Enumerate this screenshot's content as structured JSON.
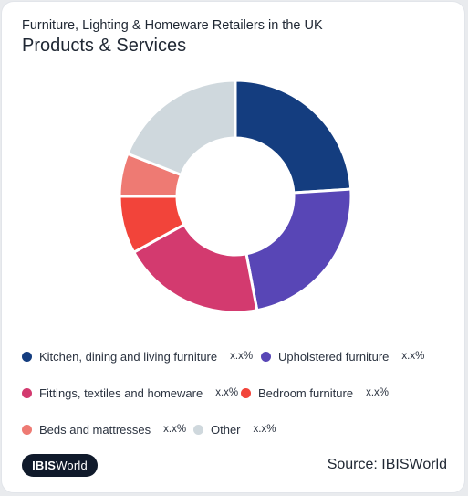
{
  "header": {
    "subtitle": "Furniture, Lighting & Homeware Retailers in the UK",
    "title": "Products & Services"
  },
  "chart_data": {
    "type": "pie",
    "variant": "donut",
    "categories": [
      "Kitchen, dining and living furniture",
      "Upholstered furniture",
      "Fittings, textiles and homeware",
      "Bedroom furniture",
      "Beds and mattresses",
      "Other"
    ],
    "values": [
      24,
      23,
      20,
      8,
      6,
      19
    ],
    "colors": [
      "#143d7f",
      "#5846b6",
      "#d33a6f",
      "#f2443a",
      "#ee7a73",
      "#cfd8dd"
    ],
    "value_labels": [
      "x.x%",
      "x.x%",
      "x.x%",
      "x.x%",
      "x.x%",
      "x.x%"
    ]
  },
  "footer": {
    "logo_bold": "IBIS",
    "logo_rest": "World",
    "source": "Source: IBISWorld"
  }
}
